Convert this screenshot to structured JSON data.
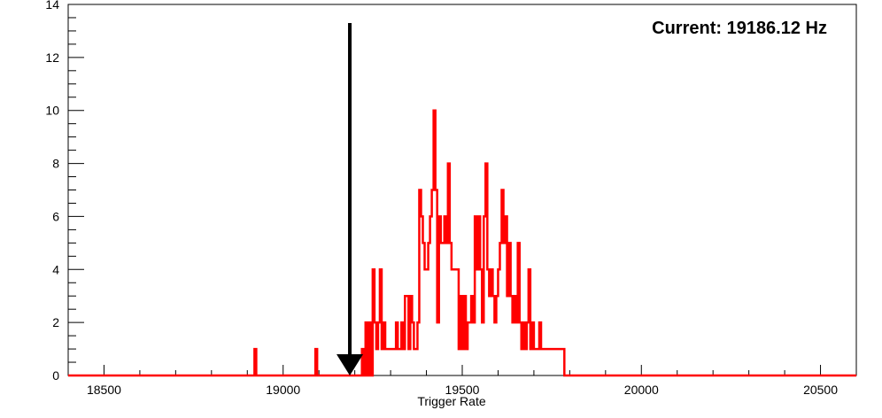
{
  "chart_data": {
    "type": "histogram",
    "title": "",
    "xlabel": "Trigger Rate",
    "ylabel": "",
    "xlim": [
      18400,
      20600
    ],
    "ylim": [
      0,
      14
    ],
    "bin_width": 5,
    "x_ticks": [
      18500,
      19000,
      19500,
      20000,
      20500
    ],
    "y_ticks": [
      0,
      2,
      4,
      6,
      8,
      10,
      12,
      14
    ],
    "grid": false,
    "legend": "none",
    "series": [
      {
        "color": "#ff0000",
        "bins": [
          [
            18920,
            1
          ],
          [
            19090,
            1
          ],
          [
            19220,
            1
          ],
          [
            19230,
            2
          ],
          [
            19240,
            2
          ],
          [
            19250,
            4
          ],
          [
            19255,
            2
          ],
          [
            19260,
            1
          ],
          [
            19265,
            2
          ],
          [
            19270,
            4
          ],
          [
            19275,
            1
          ],
          [
            19280,
            2
          ],
          [
            19285,
            1
          ],
          [
            19290,
            1
          ],
          [
            19295,
            1
          ],
          [
            19300,
            1
          ],
          [
            19305,
            1
          ],
          [
            19310,
            1
          ],
          [
            19315,
            2
          ],
          [
            19320,
            1
          ],
          [
            19325,
            1
          ],
          [
            19330,
            2
          ],
          [
            19335,
            1
          ],
          [
            19340,
            3
          ],
          [
            19345,
            3
          ],
          [
            19350,
            1
          ],
          [
            19355,
            3
          ],
          [
            19360,
            2
          ],
          [
            19365,
            1
          ],
          [
            19370,
            1
          ],
          [
            19375,
            2
          ],
          [
            19380,
            7
          ],
          [
            19385,
            6
          ],
          [
            19390,
            5
          ],
          [
            19395,
            4
          ],
          [
            19400,
            4
          ],
          [
            19405,
            5
          ],
          [
            19410,
            6
          ],
          [
            19415,
            7
          ],
          [
            19420,
            10
          ],
          [
            19425,
            7
          ],
          [
            19430,
            2
          ],
          [
            19435,
            6
          ],
          [
            19440,
            5
          ],
          [
            19445,
            5
          ],
          [
            19450,
            6
          ],
          [
            19455,
            5
          ],
          [
            19460,
            8
          ],
          [
            19465,
            5
          ],
          [
            19470,
            4
          ],
          [
            19475,
            4
          ],
          [
            19480,
            4
          ],
          [
            19485,
            4
          ],
          [
            19490,
            1
          ],
          [
            19495,
            3
          ],
          [
            19500,
            1
          ],
          [
            19505,
            3
          ],
          [
            19510,
            1
          ],
          [
            19515,
            2
          ],
          [
            19520,
            2
          ],
          [
            19525,
            3
          ],
          [
            19530,
            2
          ],
          [
            19535,
            6
          ],
          [
            19540,
            4
          ],
          [
            19545,
            6
          ],
          [
            19550,
            4
          ],
          [
            19555,
            2
          ],
          [
            19560,
            6
          ],
          [
            19565,
            8
          ],
          [
            19570,
            4
          ],
          [
            19575,
            3
          ],
          [
            19580,
            4
          ],
          [
            19585,
            3
          ],
          [
            19590,
            2
          ],
          [
            19595,
            3
          ],
          [
            19600,
            4
          ],
          [
            19605,
            5
          ],
          [
            19610,
            7
          ],
          [
            19615,
            5
          ],
          [
            19620,
            6
          ],
          [
            19625,
            3
          ],
          [
            19630,
            5
          ],
          [
            19635,
            3
          ],
          [
            19640,
            2
          ],
          [
            19645,
            3
          ],
          [
            19650,
            2
          ],
          [
            19655,
            5
          ],
          [
            19660,
            2
          ],
          [
            19665,
            1
          ],
          [
            19670,
            2
          ],
          [
            19675,
            1
          ],
          [
            19680,
            2
          ],
          [
            19685,
            4
          ],
          [
            19690,
            1
          ],
          [
            19695,
            2
          ],
          [
            19700,
            1
          ],
          [
            19705,
            1
          ],
          [
            19710,
            1
          ],
          [
            19715,
            2
          ],
          [
            19720,
            1
          ],
          [
            19725,
            1
          ],
          [
            19730,
            1
          ],
          [
            19735,
            1
          ],
          [
            19740,
            1
          ],
          [
            19745,
            1
          ],
          [
            19750,
            1
          ],
          [
            19755,
            1
          ],
          [
            19760,
            1
          ],
          [
            19765,
            1
          ],
          [
            19770,
            1
          ],
          [
            19775,
            1
          ],
          [
            19780,
            1
          ]
        ]
      }
    ],
    "marker": {
      "x": 19186.12,
      "y_top": 13.3,
      "color": "#000000"
    },
    "annotation": "Current: 19186.12 Hz"
  }
}
